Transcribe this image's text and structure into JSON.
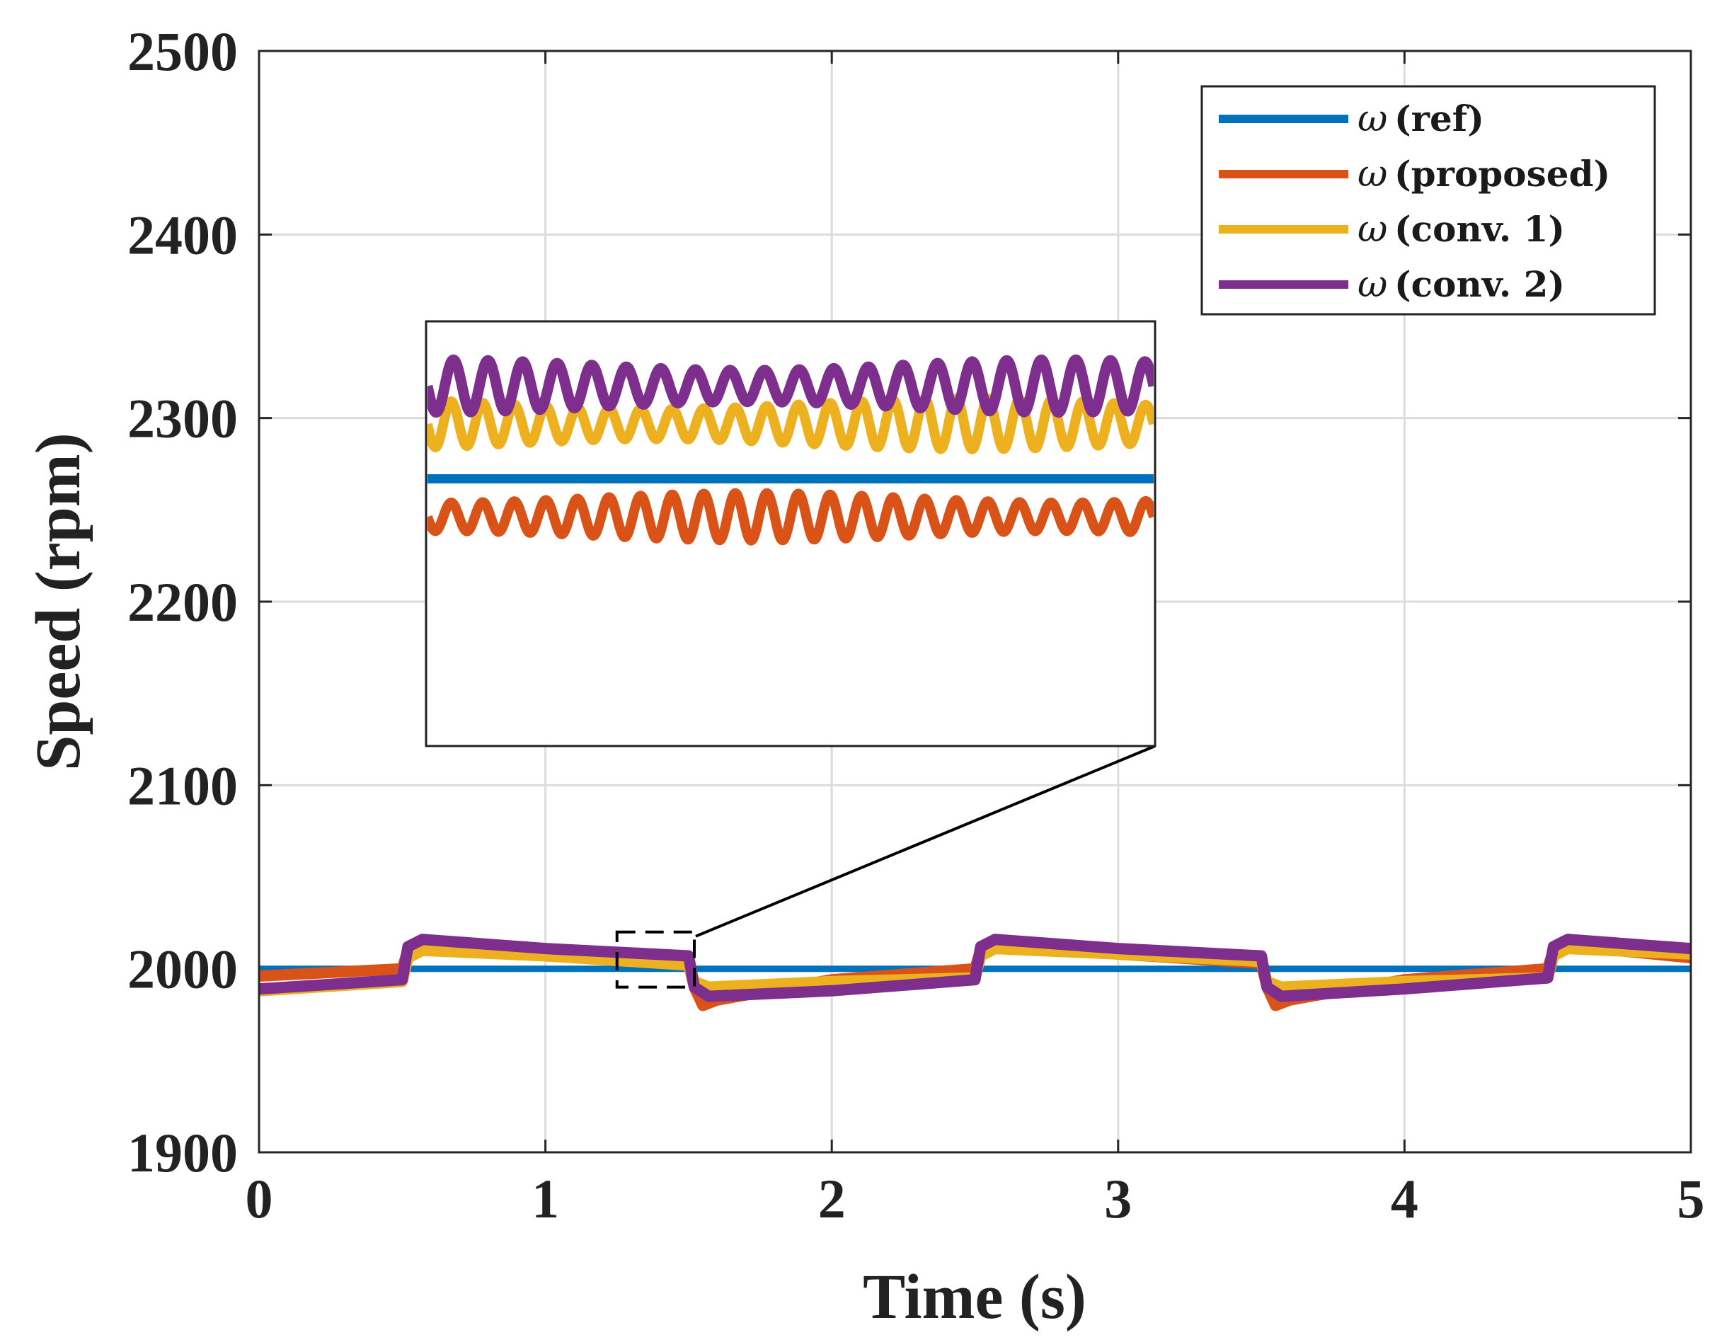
{
  "chart_data": {
    "type": "line",
    "xlabel": "Time (s)",
    "ylabel": "Speed (rpm)",
    "xlim": [
      0,
      5
    ],
    "ylim": [
      1900,
      2500
    ],
    "xticks": [
      0,
      1,
      2,
      3,
      4,
      5
    ],
    "yticks": [
      1900,
      2000,
      2100,
      2200,
      2300,
      2400,
      2500
    ],
    "xtick_labels": [
      "0",
      "1",
      "2",
      "3",
      "4",
      "5"
    ],
    "ytick_labels": [
      "1900",
      "2000",
      "2100",
      "2200",
      "2300",
      "2400",
      "2500"
    ],
    "grid": true,
    "legend_position": "top-right",
    "legend_symbol": "ω",
    "series": [
      {
        "name": "(ref)",
        "color": "#0072BD",
        "x": [
          0,
          5
        ],
        "y": [
          2000,
          2000
        ]
      },
      {
        "name": "(proposed)",
        "color": "#D95319",
        "x": [
          0,
          0.5,
          0.52,
          0.55,
          1.0,
          1.5,
          1.52,
          1.55,
          1.6,
          2.0,
          2.5,
          2.52,
          2.55,
          3.0,
          3.5,
          3.52,
          3.55,
          3.6,
          4.0,
          4.5,
          4.52,
          4.55,
          5.0
        ],
        "y": [
          1996,
          2000,
          2010,
          2013,
          2008,
          2003,
          1990,
          1980,
          1983,
          1994,
          2000,
          2010,
          2013,
          2008,
          2003,
          1990,
          1980,
          1983,
          1994,
          2000,
          2010,
          2013,
          2006
        ]
      },
      {
        "name": "(conv. 1)",
        "color": "#EDB120",
        "x": [
          0,
          0.5,
          0.52,
          0.57,
          1.0,
          1.5,
          1.52,
          1.57,
          2.0,
          2.5,
          2.52,
          2.57,
          3.0,
          3.5,
          3.52,
          3.57,
          4.0,
          4.5,
          4.52,
          4.57,
          5.0
        ],
        "y": [
          1988,
          1993,
          2006,
          2010,
          2007,
          2002,
          1993,
          1990,
          1993,
          1995,
          2007,
          2011,
          2008,
          2004,
          1993,
          1990,
          1993,
          1995,
          2007,
          2011,
          2008
        ]
      },
      {
        "name": "(conv. 2)",
        "color": "#7E2F8E",
        "x": [
          0,
          0.5,
          0.52,
          0.57,
          1.0,
          1.5,
          1.52,
          1.57,
          2.0,
          2.5,
          2.52,
          2.57,
          3.0,
          3.5,
          3.52,
          3.57,
          4.0,
          4.5,
          4.52,
          4.57,
          5.0
        ],
        "y": [
          1989,
          1994,
          2012,
          2016,
          2011,
          2007,
          1990,
          1985,
          1988,
          1994,
          2012,
          2016,
          2011,
          2007,
          1990,
          1985,
          1989,
          1995,
          2012,
          2016,
          2011
        ]
      }
    ],
    "annotation": {
      "type": "zoom-inset",
      "zoom_region": {
        "x": [
          1.25,
          1.52
        ],
        "y": [
          1990,
          2020
        ]
      },
      "inset_series": [
        {
          "name": "(ref)",
          "baseline": 0.37,
          "amplitude": 0,
          "cycles": 0
        },
        {
          "name": "(proposed)",
          "baseline": 0.46,
          "amplitude": 0.045,
          "cycles": 23
        },
        {
          "name": "(conv. 1)",
          "baseline": 0.24,
          "amplitude": 0.048,
          "cycles": 23
        },
        {
          "name": "(conv. 2)",
          "baseline": 0.15,
          "amplitude": 0.05,
          "cycles": 21
        }
      ]
    }
  }
}
